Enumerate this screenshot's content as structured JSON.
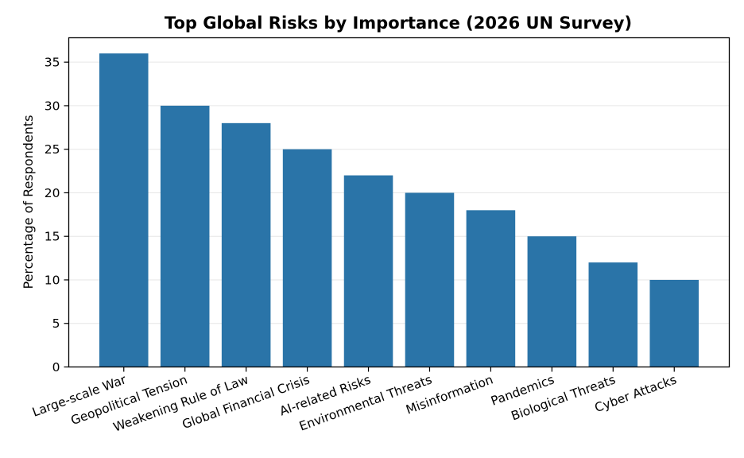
{
  "chart_data": {
    "type": "bar",
    "title": "Top Global Risks by Importance (2026 UN Survey)",
    "xlabel": "",
    "ylabel": "Percentage of Respondents",
    "categories": [
      "Large-scale War",
      "Geopolitical Tension",
      "Weakening Rule of Law",
      "Global Financial Crisis",
      "AI-related Risks",
      "Environmental Threats",
      "Misinformation",
      "Pandemics",
      "Biological Threats",
      "Cyber Attacks"
    ],
    "values": [
      36,
      30,
      28,
      25,
      22,
      20,
      18,
      15,
      12,
      10
    ],
    "ylim": [
      0,
      37.8
    ],
    "yticks": [
      0,
      5,
      10,
      15,
      20,
      25,
      30,
      35
    ],
    "grid": "horizontal",
    "bar_color": "#2a74a8",
    "grid_color": "#e6e6e6"
  }
}
